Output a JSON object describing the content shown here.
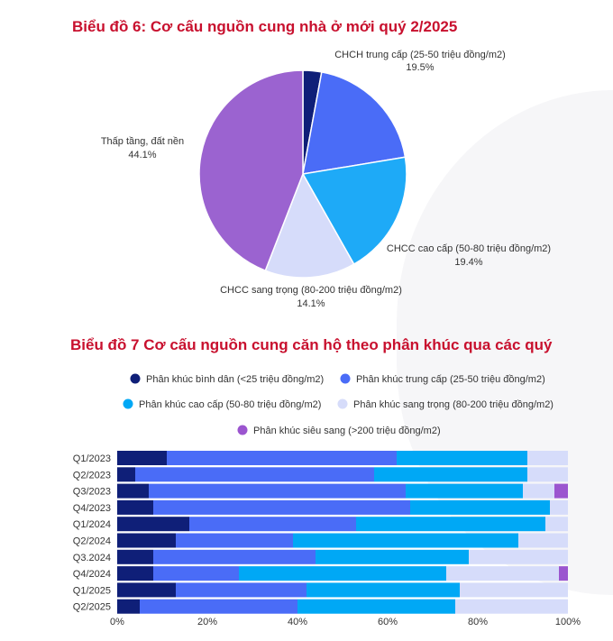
{
  "chart_data": [
    {
      "type": "pie",
      "title": "Biểu đồ 6: Cơ cấu nguồn cung nhà ở mới quý 2/2025",
      "slices": [
        {
          "name": "",
          "value": 2.9,
          "color": "#0f1f78",
          "label": ""
        },
        {
          "name": "CHCH trung cấp (25-50 triệu đồng/m2)",
          "value": 19.5,
          "color": "#4a6cf7",
          "label": "19.5%"
        },
        {
          "name": "CHCC cao cấp (50-80 triệu đồng/m2)",
          "value": 19.4,
          "color": "#1eaaf7",
          "label": "19.4%"
        },
        {
          "name": "CHCC sang trọng (80-200 triệu đồng/m2)",
          "value": 14.1,
          "color": "#d6dcfa",
          "label": "14.1%"
        },
        {
          "name": "Thấp tầng, đất nền",
          "value": 44.1,
          "color": "#9b63d0",
          "label": "44.1%"
        }
      ]
    },
    {
      "type": "bar",
      "orientation": "horizontal-stacked-100",
      "title": "Biểu đồ 7 Cơ cấu nguồn cung căn hộ theo phân khúc qua các quý",
      "categories": [
        "Q1/2023",
        "Q2/2023",
        "Q3/2023",
        "Q4/2023",
        "Q1/2024",
        "Q2/2024",
        "Q3.2024",
        "Q4/2024",
        "Q1/2025",
        "Q2/2025"
      ],
      "series": [
        {
          "name": "Phân khúc bình dân (<25 triệu đồng/m2)",
          "color": "#0f1f78",
          "values": [
            11,
            4,
            7,
            8,
            16,
            13,
            8,
            8,
            13,
            5
          ]
        },
        {
          "name": "Phân khúc trung cấp (25-50 triệu đồng/m2)",
          "color": "#4a6cf7",
          "values": [
            51,
            53,
            57,
            57,
            37,
            26,
            36,
            19,
            29,
            35
          ]
        },
        {
          "name": "Phân khúc cao cấp (50-80 triệu đồng/m2)",
          "color": "#00a8f5",
          "values": [
            29,
            34,
            26,
            31,
            42,
            50,
            34,
            46,
            34,
            35
          ]
        },
        {
          "name": "Phân khúc sang trọng (80-200 triệu đồng/m2)",
          "color": "#d6dcfa",
          "values": [
            9,
            9,
            7,
            4,
            5,
            11,
            22,
            25,
            24,
            25
          ]
        },
        {
          "name": "Phân khúc siêu sang (>200 triệu đồng/m2)",
          "color": "#9b55cf",
          "values": [
            0,
            0,
            3,
            0,
            0,
            0,
            0,
            2,
            0,
            0
          ]
        }
      ],
      "xlim": [
        0,
        100
      ],
      "xticks": [
        "0%",
        "20%",
        "40%",
        "60%",
        "80%",
        "100%"
      ],
      "legend": "top"
    }
  ]
}
